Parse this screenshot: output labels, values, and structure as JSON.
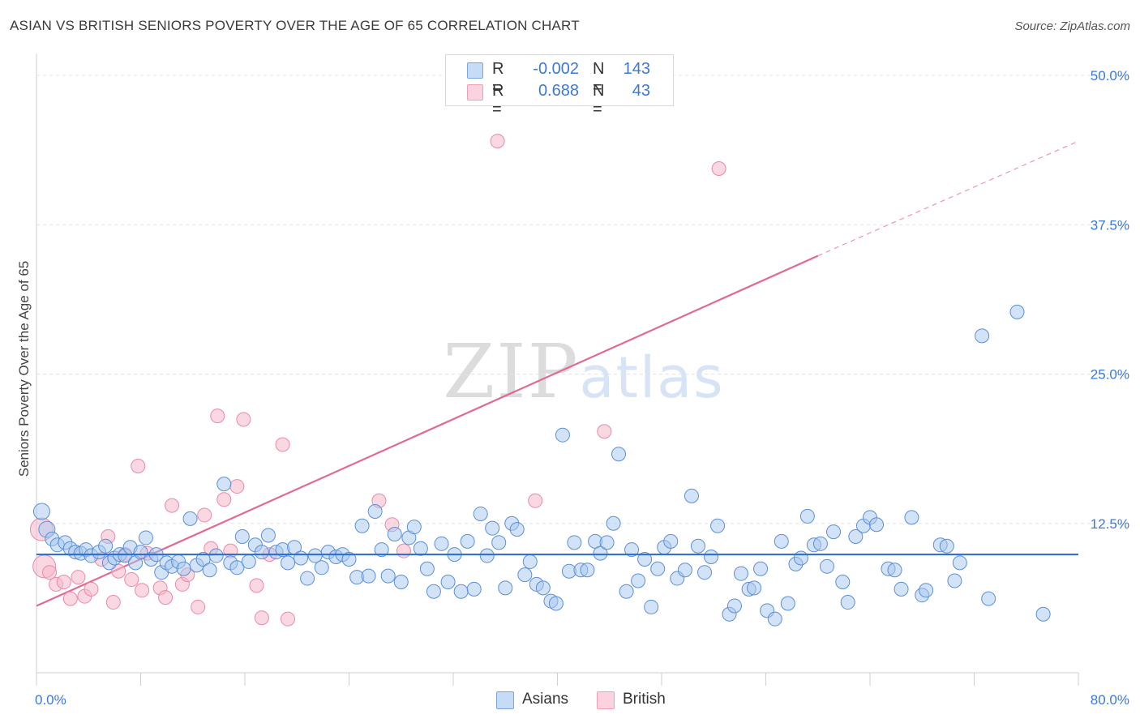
{
  "title": "ASIAN VS BRITISH SENIORS POVERTY OVER THE AGE OF 65 CORRELATION CHART",
  "source": "Source: ZipAtlas.com",
  "watermark": "ZIPatlas",
  "legend": {
    "rows": [
      {
        "r_label": "R =",
        "r_value": "-0.002",
        "n_label": "N =",
        "n_value": "143",
        "color": "#a8c8f0"
      },
      {
        "r_label": "R =",
        "r_value": "0.688",
        "n_label": "N =",
        "n_value": "43",
        "color": "#f5b8cb"
      }
    ],
    "bottom": [
      {
        "label": "Asians",
        "color": "#a8c8f0"
      },
      {
        "label": "British",
        "color": "#f5b8cb"
      }
    ]
  },
  "chart_data": {
    "type": "scatter",
    "title": "ASIAN VS BRITISH SENIORS POVERTY OVER THE AGE OF 65 CORRELATION CHART",
    "ylabel": "Seniors Poverty Over the Age of 65",
    "xlim": [
      0,
      80
    ],
    "ylim": [
      0,
      50
    ],
    "x_tick_labels": [
      "0.0%",
      "80.0%"
    ],
    "y_ticks": [
      12.5,
      25,
      37.5,
      50
    ],
    "y_tick_labels": [
      "12.5%",
      "25.0%",
      "37.5%",
      "50.0%"
    ],
    "grid": "horizontal dashed",
    "legend_position": "top-center",
    "colors": {
      "asians_fill": "#a8c8f0",
      "asians_stroke": "#5b8fd6",
      "asians_line": "#2f72d6",
      "british_fill": "#f5b8cb",
      "british_stroke": "#e88aa8",
      "british_line": "#e06a92"
    },
    "series": [
      {
        "name": "Asians",
        "trend": {
          "x0": 0,
          "y0": 9.9,
          "x1": 80,
          "y1": 9.9
        },
        "points": [
          [
            0.4,
            13.5
          ],
          [
            0.8,
            12.0
          ],
          [
            1.2,
            11.2
          ],
          [
            1.6,
            10.7
          ],
          [
            2.2,
            10.9
          ],
          [
            2.6,
            10.4
          ],
          [
            3.0,
            10.1
          ],
          [
            3.4,
            10.0
          ],
          [
            3.8,
            10.3
          ],
          [
            4.2,
            9.8
          ],
          [
            4.8,
            10.1
          ],
          [
            5.3,
            10.6
          ],
          [
            5.6,
            9.2
          ],
          [
            6.0,
            9.6
          ],
          [
            6.4,
            9.9
          ],
          [
            6.8,
            9.8
          ],
          [
            7.2,
            10.5
          ],
          [
            7.6,
            9.2
          ],
          [
            8.0,
            10.1
          ],
          [
            8.4,
            11.3
          ],
          [
            8.8,
            9.5
          ],
          [
            9.2,
            9.9
          ],
          [
            9.6,
            8.4
          ],
          [
            10.0,
            9.2
          ],
          [
            10.4,
            8.9
          ],
          [
            10.9,
            9.3
          ],
          [
            11.3,
            8.7
          ],
          [
            11.8,
            12.9
          ],
          [
            12.3,
            9.0
          ],
          [
            12.8,
            9.5
          ],
          [
            13.3,
            8.6
          ],
          [
            13.8,
            9.8
          ],
          [
            14.4,
            15.8
          ],
          [
            14.9,
            9.2
          ],
          [
            15.4,
            8.8
          ],
          [
            15.8,
            11.4
          ],
          [
            16.3,
            9.3
          ],
          [
            16.8,
            10.7
          ],
          [
            17.3,
            10.1
          ],
          [
            17.8,
            11.5
          ],
          [
            18.4,
            10.1
          ],
          [
            18.9,
            10.3
          ],
          [
            19.3,
            9.2
          ],
          [
            19.8,
            10.5
          ],
          [
            20.3,
            9.6
          ],
          [
            20.8,
            7.9
          ],
          [
            21.4,
            9.8
          ],
          [
            21.9,
            8.8
          ],
          [
            22.4,
            10.1
          ],
          [
            23.0,
            9.7
          ],
          [
            23.5,
            9.9
          ],
          [
            24.0,
            9.5
          ],
          [
            24.6,
            8.0
          ],
          [
            25.0,
            12.3
          ],
          [
            25.5,
            8.1
          ],
          [
            26.0,
            13.5
          ],
          [
            26.5,
            10.3
          ],
          [
            27.0,
            8.1
          ],
          [
            27.5,
            11.6
          ],
          [
            28.0,
            7.6
          ],
          [
            28.6,
            11.3
          ],
          [
            29.0,
            12.2
          ],
          [
            29.5,
            10.4
          ],
          [
            30.0,
            8.7
          ],
          [
            30.5,
            6.8
          ],
          [
            31.1,
            10.8
          ],
          [
            31.6,
            7.6
          ],
          [
            32.1,
            9.9
          ],
          [
            32.6,
            6.8
          ],
          [
            33.1,
            11.0
          ],
          [
            33.6,
            7.0
          ],
          [
            34.1,
            13.3
          ],
          [
            34.6,
            9.8
          ],
          [
            35.0,
            12.1
          ],
          [
            35.5,
            10.9
          ],
          [
            36.0,
            7.1
          ],
          [
            36.5,
            12.5
          ],
          [
            36.9,
            12.0
          ],
          [
            37.5,
            8.2
          ],
          [
            37.9,
            9.3
          ],
          [
            38.4,
            7.4
          ],
          [
            38.9,
            7.1
          ],
          [
            39.5,
            6.0
          ],
          [
            39.9,
            5.8
          ],
          [
            40.4,
            19.9
          ],
          [
            40.9,
            8.5
          ],
          [
            41.3,
            10.9
          ],
          [
            41.8,
            8.6
          ],
          [
            42.3,
            8.6
          ],
          [
            42.9,
            11.0
          ],
          [
            43.3,
            10.0
          ],
          [
            43.8,
            10.9
          ],
          [
            44.3,
            12.5
          ],
          [
            44.7,
            18.3
          ],
          [
            45.3,
            6.8
          ],
          [
            45.7,
            10.3
          ],
          [
            46.2,
            7.7
          ],
          [
            46.7,
            9.5
          ],
          [
            47.2,
            5.5
          ],
          [
            47.7,
            8.7
          ],
          [
            48.2,
            10.5
          ],
          [
            48.7,
            11.0
          ],
          [
            49.2,
            7.9
          ],
          [
            49.8,
            8.6
          ],
          [
            50.3,
            14.8
          ],
          [
            50.8,
            10.6
          ],
          [
            51.3,
            8.4
          ],
          [
            51.8,
            9.7
          ],
          [
            52.3,
            12.3
          ],
          [
            53.2,
            4.9
          ],
          [
            53.6,
            5.6
          ],
          [
            54.1,
            8.3
          ],
          [
            54.7,
            7.0
          ],
          [
            55.1,
            7.1
          ],
          [
            55.6,
            8.7
          ],
          [
            56.1,
            5.2
          ],
          [
            56.7,
            4.5
          ],
          [
            57.2,
            11.0
          ],
          [
            57.7,
            5.8
          ],
          [
            58.3,
            9.1
          ],
          [
            58.7,
            9.6
          ],
          [
            59.2,
            13.1
          ],
          [
            59.7,
            10.7
          ],
          [
            60.2,
            10.8
          ],
          [
            60.7,
            8.9
          ],
          [
            61.2,
            11.8
          ],
          [
            61.9,
            7.6
          ],
          [
            62.3,
            5.9
          ],
          [
            62.9,
            11.4
          ],
          [
            63.5,
            12.3
          ],
          [
            64.0,
            13.0
          ],
          [
            64.5,
            12.4
          ],
          [
            65.4,
            8.7
          ],
          [
            65.9,
            8.6
          ],
          [
            66.4,
            7.0
          ],
          [
            67.2,
            13.0
          ],
          [
            68.0,
            6.5
          ],
          [
            68.3,
            6.9
          ],
          [
            69.4,
            10.7
          ],
          [
            69.9,
            10.6
          ],
          [
            70.5,
            7.7
          ],
          [
            70.9,
            9.2
          ],
          [
            72.6,
            28.2
          ],
          [
            73.1,
            6.2
          ],
          [
            75.3,
            30.2
          ],
          [
            77.3,
            4.9
          ]
        ]
      },
      {
        "name": "British",
        "trend": {
          "x0": 0,
          "y0": 5.6,
          "x1": 60,
          "y1": 34.9,
          "dashed_to_x": 80,
          "dashed_to_y": 44.5
        },
        "points": [
          [
            0.4,
            12.0
          ],
          [
            0.6,
            8.9
          ],
          [
            1.0,
            8.4
          ],
          [
            1.5,
            7.4
          ],
          [
            2.1,
            7.6
          ],
          [
            2.6,
            6.2
          ],
          [
            3.2,
            8.0
          ],
          [
            3.7,
            6.4
          ],
          [
            4.2,
            7.0
          ],
          [
            5.0,
            9.5
          ],
          [
            5.5,
            11.4
          ],
          [
            5.9,
            5.9
          ],
          [
            6.3,
            8.5
          ],
          [
            6.8,
            9.9
          ],
          [
            7.3,
            7.8
          ],
          [
            7.8,
            17.3
          ],
          [
            8.1,
            6.9
          ],
          [
            8.5,
            10.0
          ],
          [
            9.5,
            7.1
          ],
          [
            9.9,
            6.3
          ],
          [
            10.4,
            14.0
          ],
          [
            11.2,
            7.4
          ],
          [
            11.6,
            8.2
          ],
          [
            12.4,
            5.5
          ],
          [
            12.9,
            13.2
          ],
          [
            13.4,
            10.4
          ],
          [
            13.9,
            21.5
          ],
          [
            14.4,
            14.5
          ],
          [
            14.9,
            10.2
          ],
          [
            15.4,
            15.6
          ],
          [
            15.9,
            21.2
          ],
          [
            16.9,
            7.3
          ],
          [
            17.3,
            4.6
          ],
          [
            17.9,
            9.9
          ],
          [
            18.9,
            19.1
          ],
          [
            19.3,
            4.5
          ],
          [
            26.3,
            14.4
          ],
          [
            27.3,
            12.4
          ],
          [
            28.2,
            10.2
          ],
          [
            35.4,
            44.5
          ],
          [
            38.3,
            14.4
          ],
          [
            43.6,
            20.2
          ],
          [
            52.4,
            42.2
          ]
        ]
      }
    ]
  }
}
